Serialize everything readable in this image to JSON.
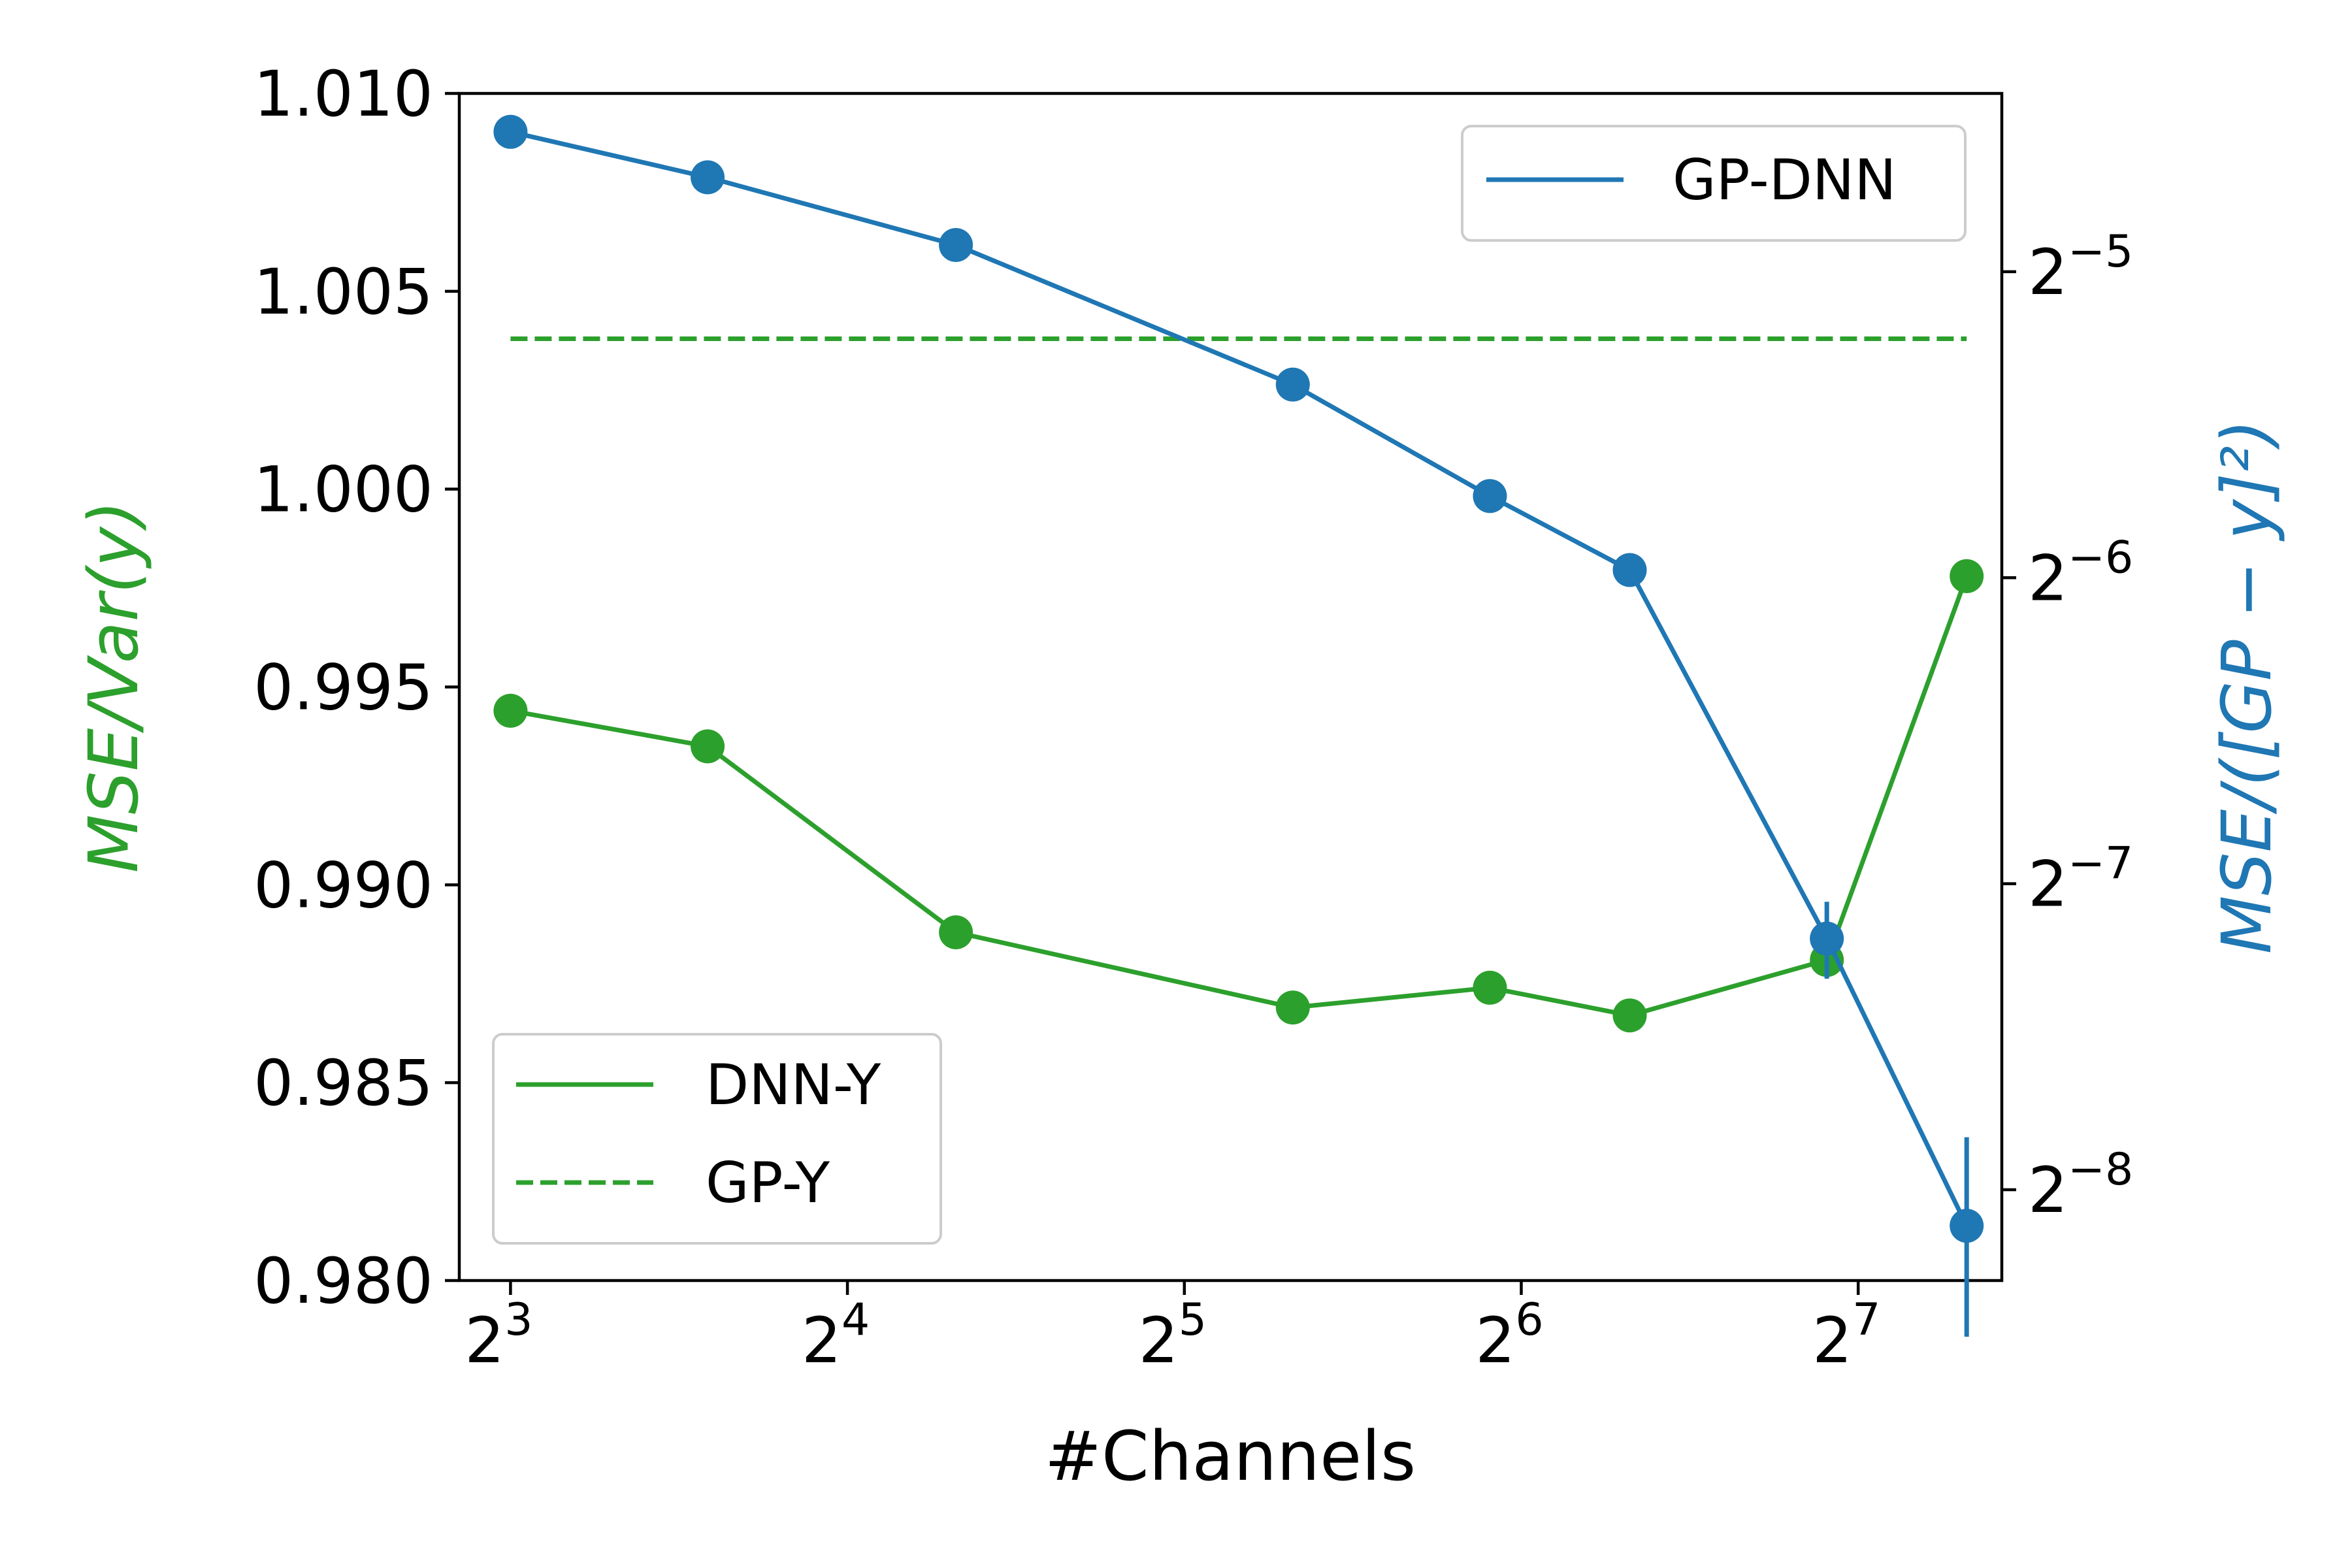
{
  "chart_data": {
    "type": "line",
    "xlabel": "#Channels",
    "x_scale": "log2",
    "xlim": [
      7.2,
      172
    ],
    "x_ticks": [
      {
        "value": 8,
        "base": "2",
        "exp": "3"
      },
      {
        "value": 16,
        "base": "2",
        "exp": "4"
      },
      {
        "value": 32,
        "base": "2",
        "exp": "5"
      },
      {
        "value": 64,
        "base": "2",
        "exp": "6"
      },
      {
        "value": 128,
        "base": "2",
        "exp": "7"
      }
    ],
    "left_axis": {
      "label": "MSE/Var(y)",
      "color": "#2ca02c",
      "ylim": [
        0.98,
        1.01
      ],
      "ticks": [
        {
          "value": 0.98,
          "label": "0.980"
        },
        {
          "value": 0.985,
          "label": "0.985"
        },
        {
          "value": 0.99,
          "label": "0.990"
        },
        {
          "value": 0.995,
          "label": "0.995"
        },
        {
          "value": 1.0,
          "label": "1.000"
        },
        {
          "value": 1.005,
          "label": "1.005"
        },
        {
          "value": 1.01,
          "label": "1.010"
        }
      ]
    },
    "right_axis": {
      "label": "MSE/([GP − y]²)",
      "color": "#1f77b4",
      "scale": "log2",
      "ylim": [
        0.00318,
        0.0468
      ],
      "ticks": [
        {
          "value": 0.03125,
          "base": "2",
          "exp": "−5"
        },
        {
          "value": 0.015625,
          "base": "2",
          "exp": "−6"
        },
        {
          "value": 0.0078125,
          "base": "2",
          "exp": "−7"
        },
        {
          "value": 0.00390625,
          "base": "2",
          "exp": "−8"
        }
      ]
    },
    "series": [
      {
        "name": "DNN-Y",
        "axis": "left",
        "style": "solid",
        "color": "#2ca02c",
        "markers": true,
        "points": [
          {
            "x": 8,
            "y": 0.9944
          },
          {
            "x": 12,
            "y": 0.9935
          },
          {
            "x": 20,
            "y": 0.9888
          },
          {
            "x": 40,
            "y": 0.9869
          },
          {
            "x": 60,
            "y": 0.9874
          },
          {
            "x": 80,
            "y": 0.9867
          },
          {
            "x": 120,
            "y": 0.9881
          },
          {
            "x": 160,
            "y": 0.9978
          }
        ]
      },
      {
        "name": "GP-Y",
        "axis": "left",
        "style": "dashed",
        "color": "#2ca02c",
        "markers": false,
        "points": [
          {
            "x": 8,
            "y": 1.0038
          },
          {
            "x": 160,
            "y": 1.0038
          }
        ]
      },
      {
        "name": "GP-DNN",
        "axis": "right",
        "style": "solid",
        "color": "#1f77b4",
        "markers": true,
        "points": [
          {
            "x": 8,
            "y": 0.0429,
            "err": 0.0003
          },
          {
            "x": 12,
            "y": 0.0387,
            "err": 0.0003
          },
          {
            "x": 20,
            "y": 0.0332,
            "err": 0.0003
          },
          {
            "x": 40,
            "y": 0.0242,
            "err": 0.0003
          },
          {
            "x": 60,
            "y": 0.0188,
            "err": 0.0002
          },
          {
            "x": 80,
            "y": 0.0159,
            "err": 0.0002
          },
          {
            "x": 120,
            "y": 0.0069,
            "err": 0.0006
          },
          {
            "x": 160,
            "y": 0.0036,
            "err": 0.0008
          }
        ]
      }
    ],
    "legends": [
      {
        "placement": "upper-right",
        "entries": [
          "GP-DNN"
        ]
      },
      {
        "placement": "lower-left",
        "entries": [
          "DNN-Y",
          "GP-Y"
        ]
      }
    ]
  }
}
